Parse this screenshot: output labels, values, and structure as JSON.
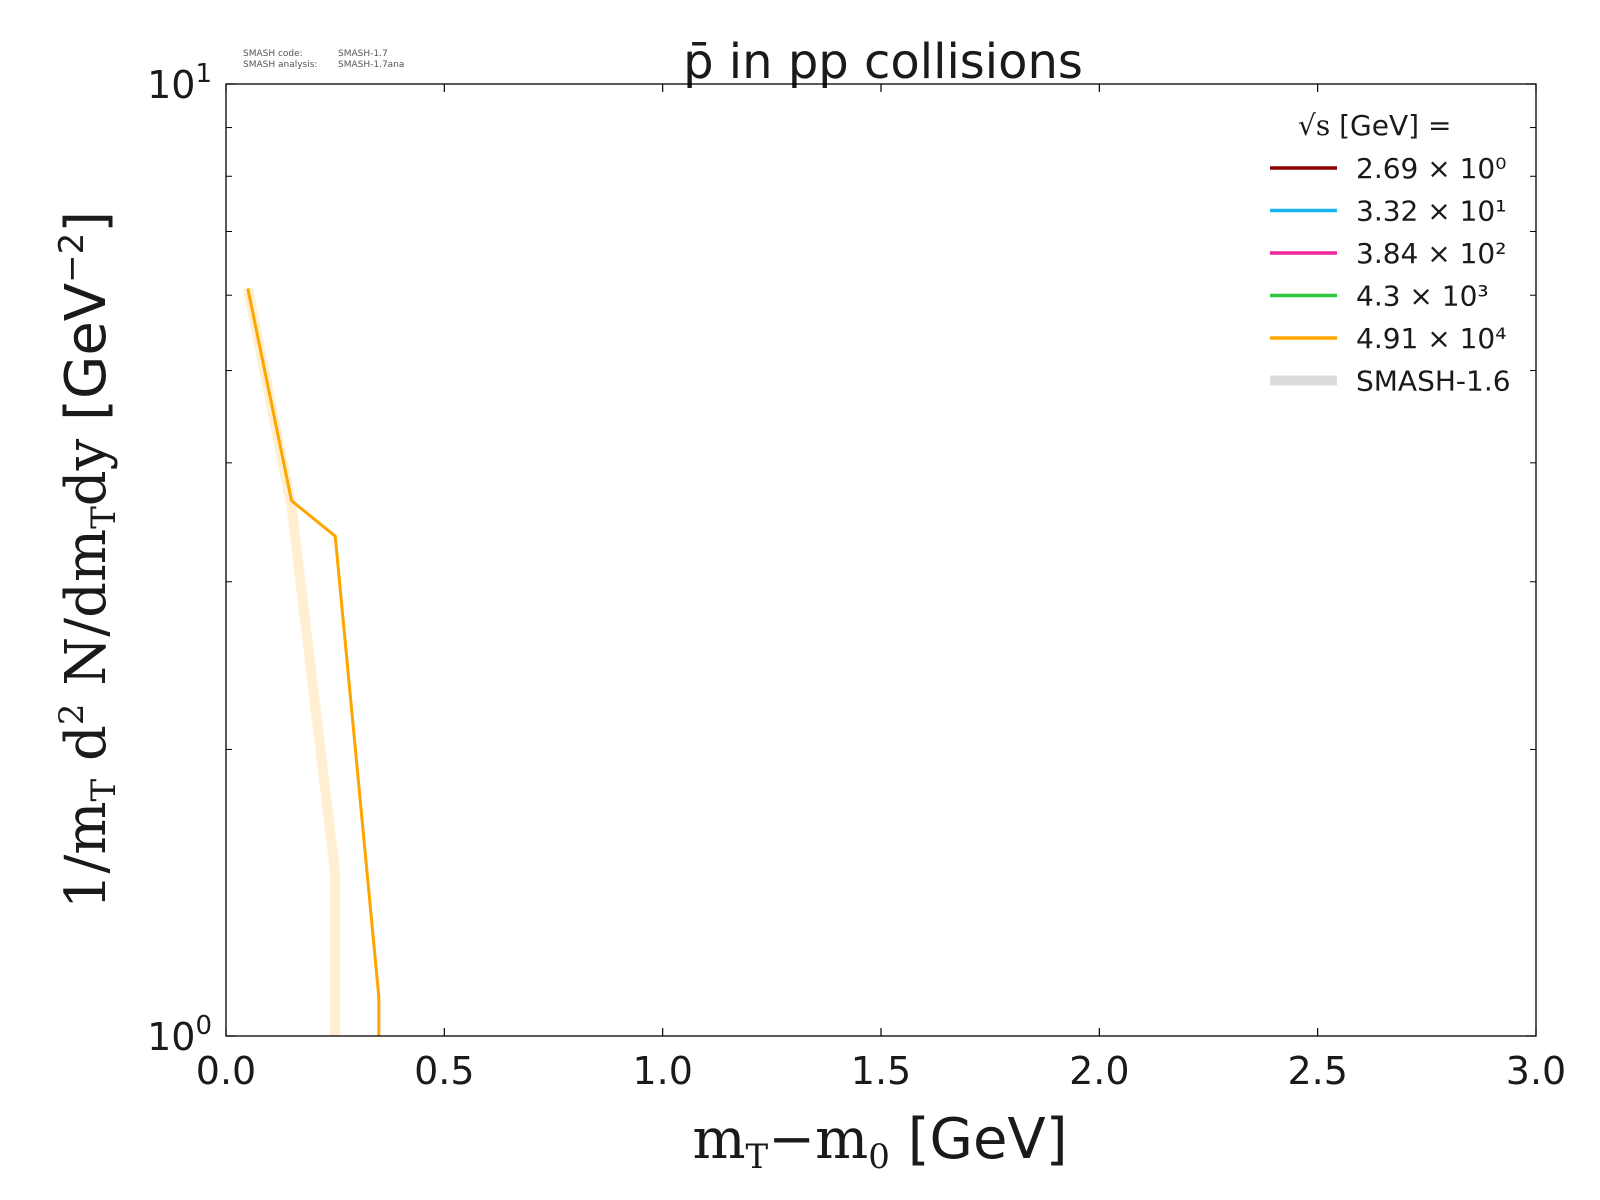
{
  "meta_text": {
    "line1_label": "SMASH code:",
    "line1_value": "SMASH-1.7",
    "line2_label": "SMASH analysis:",
    "line2_value": "SMASH-1.7ana"
  },
  "chart_data": {
    "type": "line",
    "title": "p̄ in pp collisions",
    "xlabel": "mT−m0 [GeV]",
    "ylabel": "1/mT d2 N/dmTdy [GeV−2]",
    "xlim": [
      0.0,
      3.0
    ],
    "ylim": [
      1,
      10
    ],
    "yscale": "log",
    "x_ticks": [
      "0.0",
      "0.5",
      "1.0",
      "1.5",
      "2.0",
      "2.5",
      "3.0"
    ],
    "y_ticks": [
      {
        "base": "10",
        "exp": "0"
      },
      {
        "base": "10",
        "exp": "1"
      }
    ],
    "grid": false,
    "legend_position": "top-right",
    "legend_title": "√s [GeV] =",
    "series": [
      {
        "name": "2.69 × 10⁰",
        "color": "#8b0000",
        "x": [],
        "y": []
      },
      {
        "name": "3.32 × 10¹",
        "color": "#1eb4f0",
        "x": [],
        "y": []
      },
      {
        "name": "3.84 × 10²",
        "color": "#f0249b",
        "x": [],
        "y": []
      },
      {
        "name": "4.3 × 10³",
        "color": "#2dc83c",
        "x": [],
        "y": []
      },
      {
        "name": "4.91 × 10⁴",
        "color": "#ffa500",
        "x": [
          0.05,
          0.15,
          0.25,
          0.35,
          0.35
        ],
        "y": [
          6.1,
          3.65,
          3.35,
          1.1,
          1.0
        ]
      }
    ],
    "reference": {
      "name": "SMASH-1.6",
      "legend_color": "#dcdcdc",
      "curve_color": "#ffa500",
      "x": [
        0.05,
        0.15,
        0.25,
        0.25
      ],
      "y": [
        6.1,
        3.6,
        1.48,
        1.0
      ]
    }
  }
}
